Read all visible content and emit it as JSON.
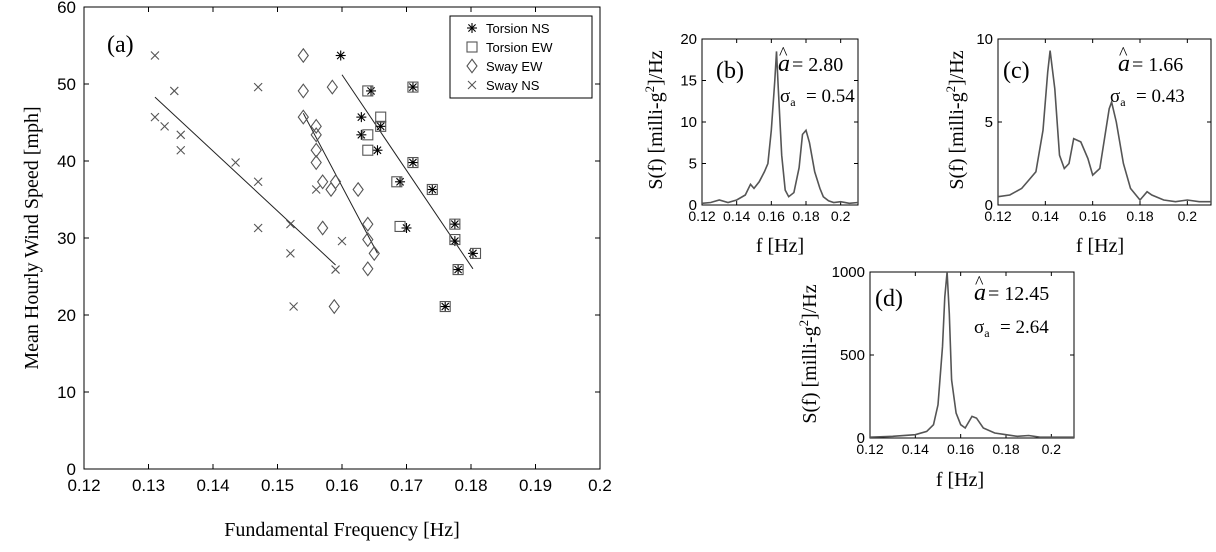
{
  "chart_data": [
    {
      "type": "scatter",
      "panel_label": "(a)",
      "xlabel": "Fundamental Frequency [Hz]",
      "ylabel": "Mean Hourly Wind Speed [mph]",
      "xlim": [
        0.12,
        0.2
      ],
      "ylim": [
        0,
        60
      ],
      "xticks": [
        "0.12",
        "0.13",
        "0.14",
        "0.15",
        "0.16",
        "0.17",
        "0.18",
        "0.19",
        "0.2"
      ],
      "yticks": [
        "0",
        "10",
        "20",
        "30",
        "40",
        "50",
        "60"
      ],
      "grid": false,
      "legend_position": "top-right",
      "series": [
        {
          "name": "Torsion NS",
          "marker": "asterisk",
          "points": [
            [
              0.1598,
              53.7
            ],
            [
              0.1645,
              49.1
            ],
            [
              0.171,
              49.6
            ],
            [
              0.163,
              45.7
            ],
            [
              0.163,
              43.4
            ],
            [
              0.166,
              44.5
            ],
            [
              0.1655,
              41.4
            ],
            [
              0.171,
              39.8
            ],
            [
              0.169,
              37.3
            ],
            [
              0.174,
              36.3
            ],
            [
              0.1775,
              31.8
            ],
            [
              0.1775,
              29.6
            ],
            [
              0.17,
              31.3
            ],
            [
              0.178,
              25.9
            ],
            [
              0.1803,
              28.0
            ],
            [
              0.176,
              21.1
            ]
          ]
        },
        {
          "name": "Torsion EW",
          "marker": "square",
          "points": [
            [
              0.164,
              49.1
            ],
            [
              0.171,
              49.6
            ],
            [
              0.166,
              45.7
            ],
            [
              0.166,
              44.5
            ],
            [
              0.164,
              43.4
            ],
            [
              0.164,
              41.4
            ],
            [
              0.171,
              39.8
            ],
            [
              0.1685,
              37.3
            ],
            [
              0.174,
              36.3
            ],
            [
              0.1775,
              31.8
            ],
            [
              0.169,
              31.5
            ],
            [
              0.1775,
              29.8
            ],
            [
              0.178,
              25.9
            ],
            [
              0.1807,
              28.0
            ],
            [
              0.176,
              21.1
            ]
          ]
        },
        {
          "name": "Sway EW",
          "marker": "diamond",
          "points": [
            [
              0.154,
              53.7
            ],
            [
              0.154,
              49.1
            ],
            [
              0.1585,
              49.6
            ],
            [
              0.154,
              45.7
            ],
            [
              0.156,
              44.5
            ],
            [
              0.156,
              43.4
            ],
            [
              0.156,
              41.4
            ],
            [
              0.156,
              39.8
            ],
            [
              0.157,
              37.3
            ],
            [
              0.159,
              37.3
            ],
            [
              0.1583,
              36.3
            ],
            [
              0.1625,
              36.3
            ],
            [
              0.164,
              31.8
            ],
            [
              0.157,
              31.3
            ],
            [
              0.164,
              29.8
            ],
            [
              0.165,
              28.0
            ],
            [
              0.164,
              26.0
            ],
            [
              0.1588,
              21.1
            ]
          ]
        },
        {
          "name": "Sway NS",
          "marker": "x",
          "points": [
            [
              0.131,
              53.7
            ],
            [
              0.131,
              45.7
            ],
            [
              0.1325,
              44.5
            ],
            [
              0.134,
              49.1
            ],
            [
              0.135,
              43.4
            ],
            [
              0.135,
              41.4
            ],
            [
              0.1435,
              39.8
            ],
            [
              0.147,
              49.6
            ],
            [
              0.147,
              37.3
            ],
            [
              0.147,
              31.3
            ],
            [
              0.152,
              31.8
            ],
            [
              0.152,
              28.0
            ],
            [
              0.1525,
              21.1
            ],
            [
              0.156,
              36.3
            ],
            [
              0.159,
              25.9
            ],
            [
              0.16,
              29.6
            ]
          ]
        }
      ],
      "fit_lines": [
        {
          "x": [
            0.131,
            0.159
          ],
          "y": [
            48.3,
            26.5
          ]
        },
        {
          "x": [
            0.154,
            0.1655
          ],
          "y": [
            46.2,
            28.0
          ]
        },
        {
          "x": [
            0.16,
            0.1803
          ],
          "y": [
            51.2,
            26.0
          ]
        }
      ]
    },
    {
      "type": "line",
      "panel_label": "(b)",
      "xlabel": "f [Hz]",
      "ylabel": "S(f) [milli-g²]/Hz",
      "xlim": [
        0.12,
        0.21
      ],
      "ylim": [
        0,
        20
      ],
      "xticks": [
        "0.12",
        "0.14",
        "0.16",
        "0.18",
        "0.2"
      ],
      "yticks": [
        "0",
        "5",
        "10",
        "15",
        "20"
      ],
      "annotation_a": "= 2.80",
      "annotation_sigma": "= 0.54",
      "x": [
        0.12,
        0.125,
        0.13,
        0.135,
        0.14,
        0.145,
        0.148,
        0.15,
        0.153,
        0.156,
        0.158,
        0.16,
        0.162,
        0.163,
        0.164,
        0.166,
        0.168,
        0.17,
        0.173,
        0.176,
        0.178,
        0.18,
        0.182,
        0.185,
        0.188,
        0.19,
        0.193,
        0.196,
        0.2,
        0.205,
        0.21
      ],
      "y": [
        0.2,
        0.3,
        0.6,
        0.3,
        0.6,
        1.2,
        2.5,
        2.0,
        2.8,
        4.0,
        5.0,
        9.0,
        15.0,
        18.5,
        14.0,
        6.0,
        1.8,
        1.0,
        1.5,
        4.5,
        8.5,
        9.0,
        7.5,
        4.0,
        2.0,
        1.0,
        0.5,
        0.3,
        0.4,
        0.2,
        0.3
      ]
    },
    {
      "type": "line",
      "panel_label": "(c)",
      "xlabel": "f [Hz]",
      "ylabel": "S(f) [milli-g²]/Hz",
      "xlim": [
        0.12,
        0.21
      ],
      "ylim": [
        0,
        10
      ],
      "xticks": [
        "0.12",
        "0.14",
        "0.16",
        "0.18",
        "0.2"
      ],
      "yticks": [
        "0",
        "5",
        "10"
      ],
      "annotation_a": "= 1.66",
      "annotation_sigma": "= 0.43",
      "x": [
        0.12,
        0.125,
        0.13,
        0.133,
        0.136,
        0.139,
        0.141,
        0.142,
        0.144,
        0.146,
        0.148,
        0.15,
        0.152,
        0.155,
        0.158,
        0.16,
        0.163,
        0.165,
        0.167,
        0.168,
        0.17,
        0.173,
        0.176,
        0.18,
        0.183,
        0.185,
        0.19,
        0.195,
        0.2,
        0.205,
        0.21
      ],
      "y": [
        0.5,
        0.6,
        1.0,
        1.5,
        2.0,
        4.5,
        8.0,
        9.3,
        7.0,
        3.0,
        2.2,
        2.5,
        4.0,
        3.8,
        2.8,
        1.8,
        2.2,
        4.0,
        5.8,
        6.2,
        5.0,
        2.5,
        1.0,
        0.3,
        0.8,
        0.6,
        0.3,
        0.2,
        0.3,
        0.2,
        0.2
      ]
    },
    {
      "type": "line",
      "panel_label": "(d)",
      "xlabel": "f [Hz]",
      "ylabel": "S(f) [milli-g²]/Hz",
      "xlim": [
        0.12,
        0.21
      ],
      "ylim": [
        0,
        1000
      ],
      "xticks": [
        "0.12",
        "0.14",
        "0.16",
        "0.18",
        "0.2"
      ],
      "yticks": [
        "0",
        "500",
        "1000"
      ],
      "annotation_a": "= 12.45",
      "annotation_sigma": "= 2.64",
      "x": [
        0.12,
        0.13,
        0.14,
        0.145,
        0.148,
        0.15,
        0.152,
        0.153,
        0.154,
        0.155,
        0.156,
        0.158,
        0.16,
        0.162,
        0.165,
        0.167,
        0.17,
        0.175,
        0.18,
        0.185,
        0.19,
        0.195,
        0.2,
        0.21
      ],
      "y": [
        5,
        10,
        20,
        40,
        80,
        200,
        550,
        850,
        1000,
        750,
        350,
        150,
        80,
        60,
        130,
        120,
        60,
        30,
        20,
        10,
        15,
        5,
        5,
        5
      ]
    }
  ]
}
